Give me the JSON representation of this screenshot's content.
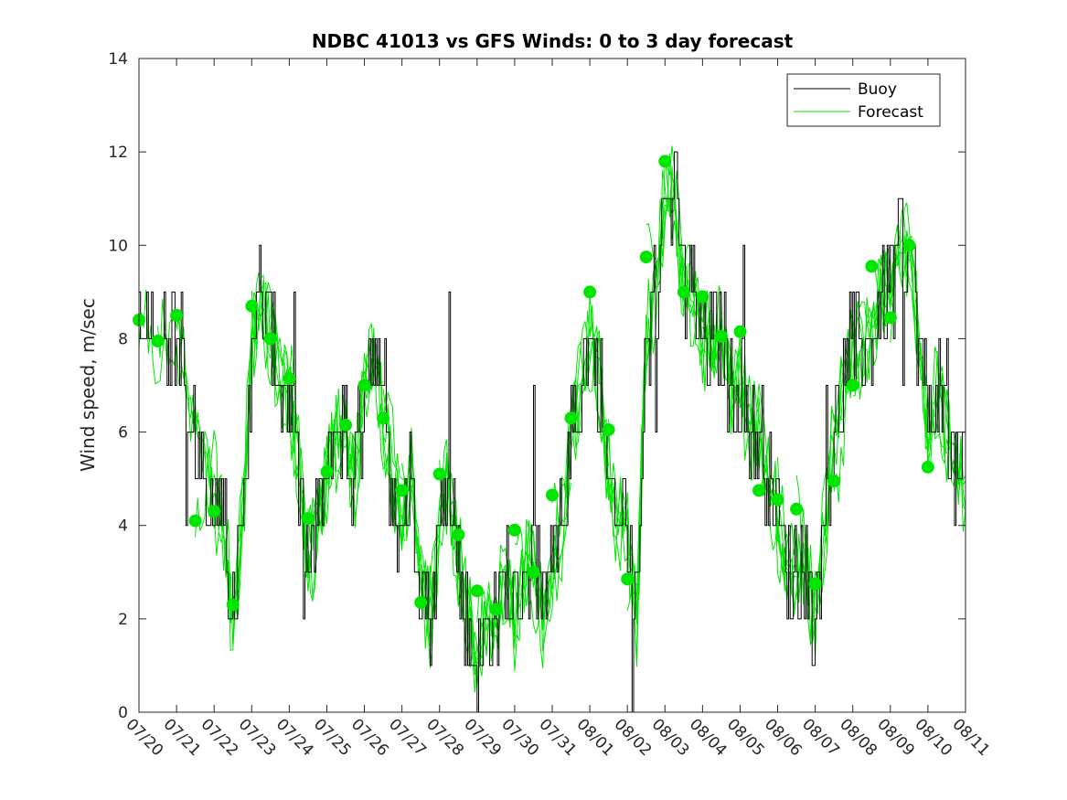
{
  "chart_data": {
    "type": "line",
    "title": "NDBC 41013 vs GFS Winds: 0 to 3 day forecast",
    "xlabel": "",
    "ylabel": "Wind speed, m/sec",
    "ylim": [
      0,
      14
    ],
    "yticks": [
      0,
      2,
      4,
      6,
      8,
      10,
      12,
      14
    ],
    "xlim_days": [
      0,
      22
    ],
    "xtick_labels": [
      "07/20",
      "07/21",
      "07/22",
      "07/23",
      "07/24",
      "07/25",
      "07/26",
      "07/27",
      "07/28",
      "07/29",
      "07/30",
      "07/31",
      "08/01",
      "08/02",
      "08/03",
      "08/04",
      "08/05",
      "08/06",
      "08/07",
      "08/08",
      "08/09",
      "08/10",
      "08/11"
    ],
    "grid": false,
    "legend": {
      "placement": "top-right",
      "entries": [
        {
          "name": "Buoy",
          "color": "#000000"
        },
        {
          "name": "Forecast",
          "color": "#00e600"
        }
      ]
    },
    "series": [
      {
        "name": "Buoy",
        "color": "#000000",
        "x": [
          0,
          0.5,
          1,
          1.25,
          1.5,
          1.75,
          2,
          2.25,
          2.5,
          2.75,
          3,
          3.25,
          3.5,
          3.75,
          4,
          4.25,
          4.5,
          4.75,
          5,
          5.25,
          5.5,
          5.75,
          6,
          6.25,
          6.5,
          6.75,
          7,
          7.25,
          7.5,
          7.75,
          8,
          8.25,
          8.5,
          8.75,
          9,
          9.25,
          9.5,
          9.75,
          10,
          10.25,
          10.5,
          10.75,
          11,
          11.25,
          11.5,
          11.75,
          12,
          12.25,
          12.5,
          12.75,
          13,
          13.25,
          13.5,
          13.75,
          14,
          14.25,
          14.5,
          14.75,
          15,
          15.25,
          15.5,
          15.75,
          16,
          16.25,
          16.5,
          16.75,
          17,
          17.25,
          17.5,
          17.75,
          18,
          18.25,
          18.5,
          18.75,
          19,
          19.25,
          19.5,
          19.75,
          20,
          20.25,
          20.5,
          20.75,
          21,
          21.25,
          21.5,
          21.75,
          22
        ],
        "values": [
          8,
          8,
          8,
          7,
          6,
          5,
          5,
          4,
          2,
          4,
          8,
          9,
          8,
          7,
          7,
          5,
          3,
          4,
          5,
          6,
          6,
          5,
          7,
          8,
          6,
          5,
          4,
          5,
          3,
          2,
          4,
          5,
          3,
          2,
          1,
          2,
          2,
          3,
          2,
          3,
          3,
          2,
          3,
          4,
          6,
          7,
          8,
          7,
          5,
          4,
          4,
          2,
          8,
          9,
          11,
          11,
          9,
          9,
          8,
          8,
          8,
          7,
          7,
          6,
          6,
          5,
          4,
          3,
          3,
          3,
          2,
          4,
          6,
          7,
          8,
          8,
          8,
          9,
          9,
          10,
          10,
          8,
          6,
          7,
          6,
          5,
          5
        ]
      },
      {
        "name": "Forecast",
        "color": "#00e600",
        "forecast_start_markers": {
          "x": [
            0,
            0.5,
            1,
            1.5,
            2,
            2.5,
            3,
            3.5,
            4,
            4.5,
            5,
            5.5,
            6,
            6.5,
            7,
            7.5,
            8,
            8.5,
            9,
            9.5,
            10,
            10.5,
            11,
            11.5,
            12,
            12.5,
            13,
            13.5,
            14,
            14.5,
            15,
            15.5,
            16,
            16.5,
            17,
            17.5,
            18,
            18.5,
            19,
            19.5,
            20,
            20.5,
            21
          ],
          "values": [
            8.4,
            7.95,
            8.5,
            4.1,
            4.3,
            2.3,
            8.7,
            8.0,
            7.15,
            4.15,
            5.15,
            6.15,
            7.0,
            6.3,
            4.75,
            2.35,
            5.1,
            3.8,
            2.6,
            2.2,
            3.9,
            3.0,
            4.65,
            6.3,
            9.0,
            6.05,
            2.85,
            9.75,
            11.8,
            9.0,
            8.9,
            8.05,
            8.15,
            4.75,
            4.55,
            4.35,
            2.75,
            4.95,
            7.0,
            9.55,
            8.45,
            10.0,
            5.25
          ]
        }
      }
    ]
  }
}
